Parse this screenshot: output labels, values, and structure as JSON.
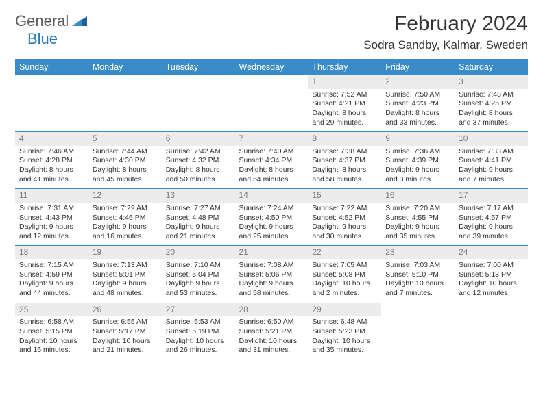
{
  "logo": {
    "text1": "General",
    "text2": "Blue"
  },
  "title": "February 2024",
  "location": "Sodra Sandby, Kalmar, Sweden",
  "colors": {
    "header_bg": "#3a8cc9",
    "header_text": "#ffffff",
    "daynum_bg": "#ececec",
    "daynum_text": "#7a7a7a",
    "rule": "#3a8cc9",
    "body_text": "#333333",
    "logo_gray": "#5a5a5a",
    "logo_blue": "#2a7ab8"
  },
  "typography": {
    "title_fontsize": 30,
    "location_fontsize": 17,
    "header_fontsize": 12.5,
    "cell_fontsize": 10.5,
    "daynum_fontsize": 12
  },
  "weekdays": [
    "Sunday",
    "Monday",
    "Tuesday",
    "Wednesday",
    "Thursday",
    "Friday",
    "Saturday"
  ],
  "grid": [
    [
      null,
      null,
      null,
      null,
      {
        "n": "1",
        "sr": "Sunrise: 7:52 AM",
        "ss": "Sunset: 4:21 PM",
        "d1": "Daylight: 8 hours",
        "d2": "and 29 minutes."
      },
      {
        "n": "2",
        "sr": "Sunrise: 7:50 AM",
        "ss": "Sunset: 4:23 PM",
        "d1": "Daylight: 8 hours",
        "d2": "and 33 minutes."
      },
      {
        "n": "3",
        "sr": "Sunrise: 7:48 AM",
        "ss": "Sunset: 4:25 PM",
        "d1": "Daylight: 8 hours",
        "d2": "and 37 minutes."
      }
    ],
    [
      {
        "n": "4",
        "sr": "Sunrise: 7:46 AM",
        "ss": "Sunset: 4:28 PM",
        "d1": "Daylight: 8 hours",
        "d2": "and 41 minutes."
      },
      {
        "n": "5",
        "sr": "Sunrise: 7:44 AM",
        "ss": "Sunset: 4:30 PM",
        "d1": "Daylight: 8 hours",
        "d2": "and 45 minutes."
      },
      {
        "n": "6",
        "sr": "Sunrise: 7:42 AM",
        "ss": "Sunset: 4:32 PM",
        "d1": "Daylight: 8 hours",
        "d2": "and 50 minutes."
      },
      {
        "n": "7",
        "sr": "Sunrise: 7:40 AM",
        "ss": "Sunset: 4:34 PM",
        "d1": "Daylight: 8 hours",
        "d2": "and 54 minutes."
      },
      {
        "n": "8",
        "sr": "Sunrise: 7:38 AM",
        "ss": "Sunset: 4:37 PM",
        "d1": "Daylight: 8 hours",
        "d2": "and 58 minutes."
      },
      {
        "n": "9",
        "sr": "Sunrise: 7:36 AM",
        "ss": "Sunset: 4:39 PM",
        "d1": "Daylight: 9 hours",
        "d2": "and 3 minutes."
      },
      {
        "n": "10",
        "sr": "Sunrise: 7:33 AM",
        "ss": "Sunset: 4:41 PM",
        "d1": "Daylight: 9 hours",
        "d2": "and 7 minutes."
      }
    ],
    [
      {
        "n": "11",
        "sr": "Sunrise: 7:31 AM",
        "ss": "Sunset: 4:43 PM",
        "d1": "Daylight: 9 hours",
        "d2": "and 12 minutes."
      },
      {
        "n": "12",
        "sr": "Sunrise: 7:29 AM",
        "ss": "Sunset: 4:46 PM",
        "d1": "Daylight: 9 hours",
        "d2": "and 16 minutes."
      },
      {
        "n": "13",
        "sr": "Sunrise: 7:27 AM",
        "ss": "Sunset: 4:48 PM",
        "d1": "Daylight: 9 hours",
        "d2": "and 21 minutes."
      },
      {
        "n": "14",
        "sr": "Sunrise: 7:24 AM",
        "ss": "Sunset: 4:50 PM",
        "d1": "Daylight: 9 hours",
        "d2": "and 25 minutes."
      },
      {
        "n": "15",
        "sr": "Sunrise: 7:22 AM",
        "ss": "Sunset: 4:52 PM",
        "d1": "Daylight: 9 hours",
        "d2": "and 30 minutes."
      },
      {
        "n": "16",
        "sr": "Sunrise: 7:20 AM",
        "ss": "Sunset: 4:55 PM",
        "d1": "Daylight: 9 hours",
        "d2": "and 35 minutes."
      },
      {
        "n": "17",
        "sr": "Sunrise: 7:17 AM",
        "ss": "Sunset: 4:57 PM",
        "d1": "Daylight: 9 hours",
        "d2": "and 39 minutes."
      }
    ],
    [
      {
        "n": "18",
        "sr": "Sunrise: 7:15 AM",
        "ss": "Sunset: 4:59 PM",
        "d1": "Daylight: 9 hours",
        "d2": "and 44 minutes."
      },
      {
        "n": "19",
        "sr": "Sunrise: 7:13 AM",
        "ss": "Sunset: 5:01 PM",
        "d1": "Daylight: 9 hours",
        "d2": "and 48 minutes."
      },
      {
        "n": "20",
        "sr": "Sunrise: 7:10 AM",
        "ss": "Sunset: 5:04 PM",
        "d1": "Daylight: 9 hours",
        "d2": "and 53 minutes."
      },
      {
        "n": "21",
        "sr": "Sunrise: 7:08 AM",
        "ss": "Sunset: 5:06 PM",
        "d1": "Daylight: 9 hours",
        "d2": "and 58 minutes."
      },
      {
        "n": "22",
        "sr": "Sunrise: 7:05 AM",
        "ss": "Sunset: 5:08 PM",
        "d1": "Daylight: 10 hours",
        "d2": "and 2 minutes."
      },
      {
        "n": "23",
        "sr": "Sunrise: 7:03 AM",
        "ss": "Sunset: 5:10 PM",
        "d1": "Daylight: 10 hours",
        "d2": "and 7 minutes."
      },
      {
        "n": "24",
        "sr": "Sunrise: 7:00 AM",
        "ss": "Sunset: 5:13 PM",
        "d1": "Daylight: 10 hours",
        "d2": "and 12 minutes."
      }
    ],
    [
      {
        "n": "25",
        "sr": "Sunrise: 6:58 AM",
        "ss": "Sunset: 5:15 PM",
        "d1": "Daylight: 10 hours",
        "d2": "and 16 minutes."
      },
      {
        "n": "26",
        "sr": "Sunrise: 6:55 AM",
        "ss": "Sunset: 5:17 PM",
        "d1": "Daylight: 10 hours",
        "d2": "and 21 minutes."
      },
      {
        "n": "27",
        "sr": "Sunrise: 6:53 AM",
        "ss": "Sunset: 5:19 PM",
        "d1": "Daylight: 10 hours",
        "d2": "and 26 minutes."
      },
      {
        "n": "28",
        "sr": "Sunrise: 6:50 AM",
        "ss": "Sunset: 5:21 PM",
        "d1": "Daylight: 10 hours",
        "d2": "and 31 minutes."
      },
      {
        "n": "29",
        "sr": "Sunrise: 6:48 AM",
        "ss": "Sunset: 5:23 PM",
        "d1": "Daylight: 10 hours",
        "d2": "and 35 minutes."
      },
      null,
      null
    ]
  ]
}
